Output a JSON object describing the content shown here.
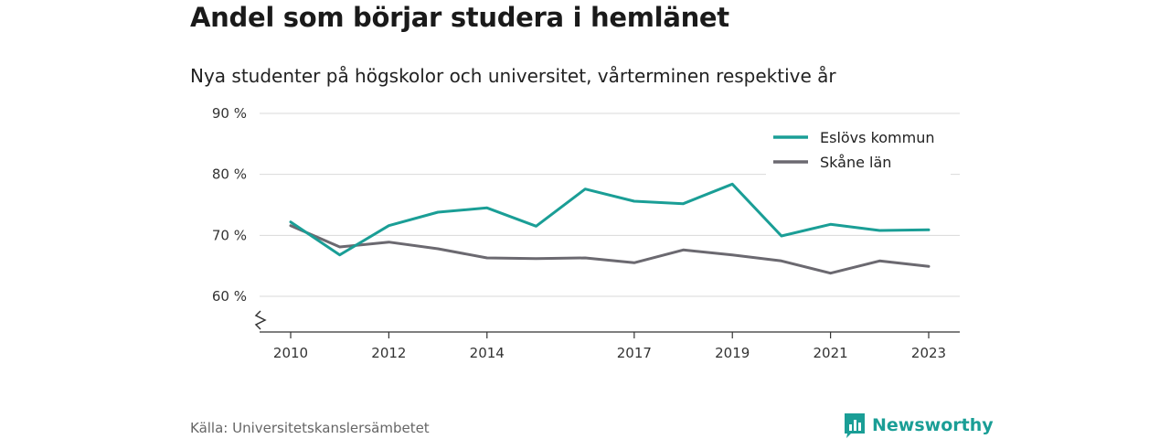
{
  "title": "Andel som börjar studera i hemlänet",
  "subtitle": "Nya studenter på högskolor och universitet, vårterminen respektive år",
  "source": "Källa: Universitetskanslersämbetet",
  "brand": "Newsworthy",
  "colors": {
    "brand": "#1a9e96",
    "grid": "#d9d9d9",
    "axis": "#333333"
  },
  "chart_data": {
    "type": "line",
    "title": "Andel som börjar studera i hemlänet",
    "subtitle": "Nya studenter på högskolor och universitet, vårterminen respektive år",
    "x": [
      2010,
      2011,
      2012,
      2013,
      2014,
      2015,
      2016,
      2017,
      2018,
      2019,
      2020,
      2021,
      2022,
      2023
    ],
    "xticks": [
      2010,
      2012,
      2014,
      2017,
      2019,
      2021,
      2023
    ],
    "ylim": [
      55,
      90
    ],
    "yticks": [
      60,
      70,
      80,
      90
    ],
    "ytick_labels": [
      "60 %",
      "70 %",
      "80 %",
      "90 %"
    ],
    "y_axis_break": true,
    "grid": true,
    "legend_position": "top-right",
    "series": [
      {
        "name": "Eslövs kommun",
        "color": "#1a9e96",
        "values": [
          72.2,
          66.8,
          71.6,
          73.8,
          74.5,
          71.5,
          77.6,
          75.6,
          75.2,
          78.4,
          69.9,
          71.8,
          70.8,
          70.9
        ]
      },
      {
        "name": "Skåne län",
        "color": "#6b6970",
        "values": [
          71.6,
          68.1,
          68.9,
          67.8,
          66.3,
          66.2,
          66.3,
          65.5,
          67.6,
          66.8,
          65.8,
          63.8,
          65.8,
          64.9
        ]
      }
    ]
  }
}
